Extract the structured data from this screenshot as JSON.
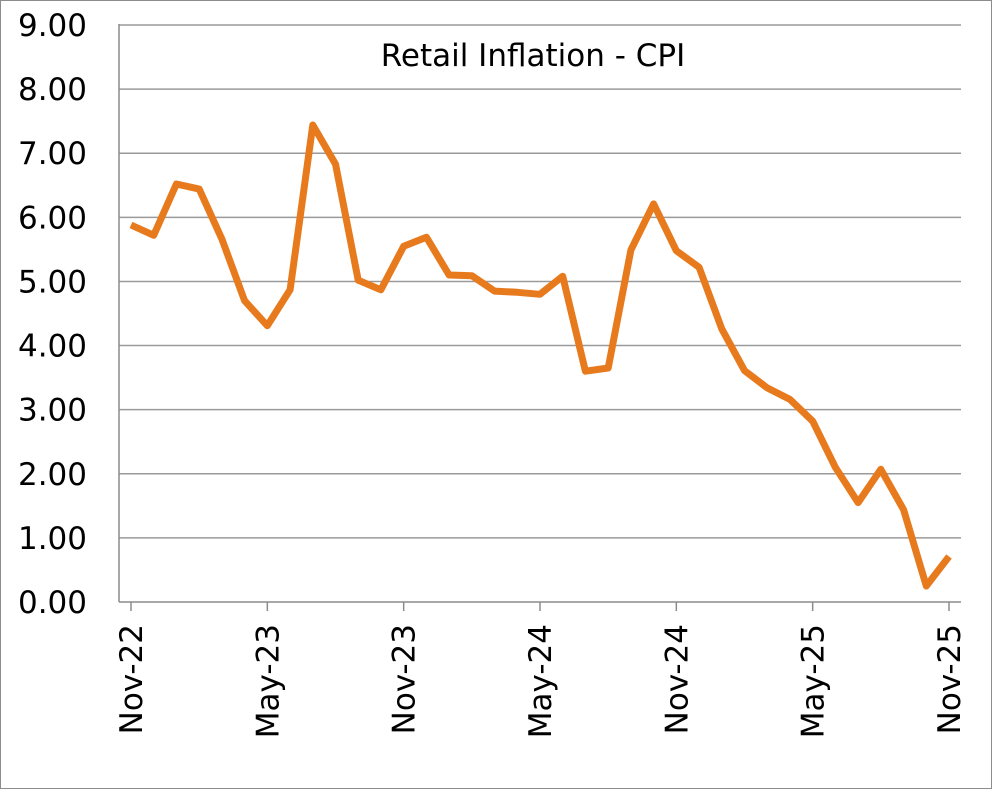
{
  "chart_data": {
    "type": "line",
    "title": "Retail Inflation - CPI",
    "xlabel": "",
    "ylabel": "",
    "ylim": [
      0,
      9
    ],
    "yticks": [
      "0.00",
      "1.00",
      "2.00",
      "3.00",
      "4.00",
      "5.00",
      "6.00",
      "7.00",
      "8.00",
      "9.00"
    ],
    "xticks": [
      "Nov-22",
      "May-23",
      "Nov-23",
      "May-24",
      "Nov-24",
      "May-25",
      "Nov-25"
    ],
    "grid": true,
    "legend": "none",
    "line_color": "#E87A1E",
    "x": [
      "Nov-22",
      "Dec-22",
      "Jan-23",
      "Feb-23",
      "Mar-23",
      "Apr-23",
      "May-23",
      "Jun-23",
      "Jul-23",
      "Aug-23",
      "Sep-23",
      "Oct-23",
      "Nov-23",
      "Dec-23",
      "Jan-24",
      "Feb-24",
      "Mar-24",
      "Apr-24",
      "May-24",
      "Jun-24",
      "Jul-24",
      "Aug-24",
      "Sep-24",
      "Oct-24",
      "Nov-24",
      "Dec-24",
      "Jan-25",
      "Feb-25",
      "Mar-25",
      "Apr-25",
      "May-25",
      "Jun-25",
      "Jul-25",
      "Aug-25",
      "Sep-25",
      "Oct-25",
      "Nov-25"
    ],
    "series": [
      {
        "values": [
          5.88,
          5.72,
          6.52,
          6.44,
          5.66,
          4.7,
          4.31,
          4.87,
          7.44,
          6.83,
          5.02,
          4.87,
          5.55,
          5.69,
          5.1,
          5.09,
          4.85,
          4.83,
          4.8,
          5.08,
          3.6,
          3.65,
          5.49,
          6.21,
          5.48,
          5.22,
          4.26,
          3.61,
          3.34,
          3.16,
          2.82,
          2.1,
          1.55,
          2.07,
          1.44,
          0.25,
          0.71
        ]
      }
    ]
  }
}
